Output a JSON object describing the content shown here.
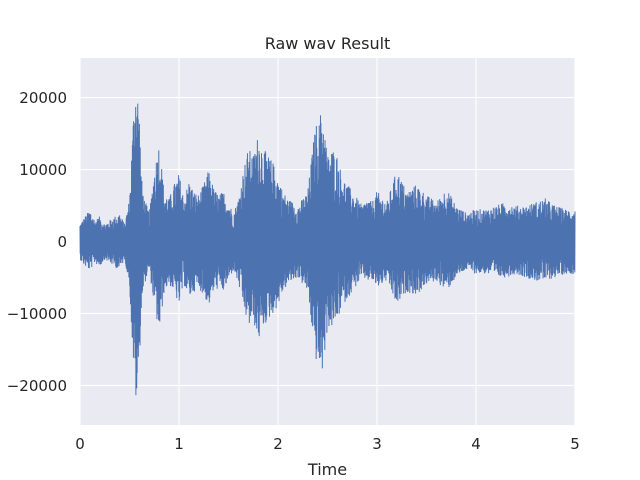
{
  "chart_data": {
    "type": "line",
    "title": "Raw wav Result",
    "xlabel": "Time",
    "ylabel": "",
    "xlim": [
      0,
      5
    ],
    "ylim": [
      -25500,
      25500
    ],
    "x_ticks": [
      0,
      1,
      2,
      3,
      4,
      5
    ],
    "x_tick_labels": [
      "0",
      "1",
      "2",
      "3",
      "4",
      "5"
    ],
    "y_ticks": [
      -20000,
      -10000,
      0,
      10000,
      20000
    ],
    "y_tick_labels": [
      "−20000",
      "−10000",
      "0",
      "10000",
      "20000"
    ],
    "grid": true,
    "colors": {
      "background": "#eaeaf2",
      "grid": "#ffffff",
      "line": "#4c72b0"
    },
    "series": [
      {
        "envelope_upper": {
          "x": [
            0,
            0.05,
            0.1,
            0.15,
            0.2,
            0.25,
            0.3,
            0.35,
            0.4,
            0.45,
            0.5,
            0.53,
            0.55,
            0.57,
            0.6,
            0.62,
            0.65,
            0.7,
            0.75,
            0.8,
            0.85,
            0.9,
            0.95,
            1.0,
            1.05,
            1.1,
            1.15,
            1.2,
            1.25,
            1.3,
            1.35,
            1.4,
            1.45,
            1.5,
            1.55,
            1.6,
            1.65,
            1.7,
            1.75,
            1.8,
            1.85,
            1.9,
            1.95,
            2.0,
            2.05,
            2.1,
            2.15,
            2.2,
            2.25,
            2.3,
            2.35,
            2.38,
            2.41,
            2.44,
            2.47,
            2.5,
            2.55,
            2.6,
            2.65,
            2.7,
            2.75,
            2.8,
            2.85,
            2.9,
            2.95,
            3.0,
            3.1,
            3.2,
            3.3,
            3.4,
            3.5,
            3.6,
            3.7,
            3.8,
            3.9,
            4.0,
            4.1,
            4.2,
            4.3,
            4.4,
            4.5,
            4.6,
            4.7,
            4.8,
            4.9,
            5.0
          ],
          "y": [
            2500,
            3500,
            4500,
            3000,
            3500,
            2500,
            3000,
            3500,
            4000,
            2500,
            6000,
            15000,
            21000,
            23000,
            18000,
            9000,
            6000,
            4000,
            10000,
            14000,
            7000,
            6000,
            8000,
            9500,
            6000,
            8500,
            7000,
            6500,
            8000,
            10000,
            7500,
            6500,
            7000,
            5500,
            4000,
            6000,
            10000,
            13000,
            12000,
            15000,
            13000,
            12000,
            11000,
            9000,
            7000,
            6000,
            5500,
            5000,
            6000,
            7000,
            13000,
            16500,
            16000,
            19000,
            16000,
            12000,
            13000,
            12000,
            9000,
            8000,
            7000,
            6000,
            5000,
            6000,
            5500,
            7000,
            5500,
            10000,
            7000,
            8000,
            6500,
            5500,
            7500,
            5000,
            4000,
            4500,
            4500,
            5000,
            5500,
            5000,
            5000,
            5500,
            6000,
            5000,
            4500,
            4500
          ]
        },
        "envelope_lower": {
          "x": [
            0,
            0.05,
            0.1,
            0.15,
            0.2,
            0.25,
            0.3,
            0.35,
            0.4,
            0.45,
            0.5,
            0.53,
            0.55,
            0.57,
            0.6,
            0.62,
            0.65,
            0.7,
            0.75,
            0.8,
            0.85,
            0.9,
            0.95,
            1.0,
            1.05,
            1.1,
            1.15,
            1.2,
            1.25,
            1.3,
            1.35,
            1.4,
            1.45,
            1.5,
            1.55,
            1.6,
            1.65,
            1.7,
            1.75,
            1.8,
            1.85,
            1.9,
            1.95,
            2.0,
            2.05,
            2.1,
            2.15,
            2.2,
            2.25,
            2.3,
            2.35,
            2.38,
            2.41,
            2.44,
            2.47,
            2.5,
            2.55,
            2.6,
            2.65,
            2.7,
            2.75,
            2.8,
            2.85,
            2.9,
            2.95,
            3.0,
            3.1,
            3.2,
            3.3,
            3.4,
            3.5,
            3.6,
            3.7,
            3.8,
            3.9,
            4.0,
            4.1,
            4.2,
            4.3,
            4.4,
            4.5,
            4.6,
            4.7,
            4.8,
            4.9,
            5.0
          ],
          "y": [
            -2500,
            -3500,
            -4000,
            -3000,
            -3500,
            -2500,
            -3000,
            -3500,
            -4000,
            -2500,
            -6000,
            -15000,
            -20000,
            -23000,
            -17000,
            -9000,
            -6000,
            -4000,
            -9000,
            -13000,
            -7000,
            -6000,
            -7000,
            -9000,
            -6000,
            -8000,
            -7000,
            -6500,
            -7500,
            -9000,
            -7000,
            -6500,
            -7000,
            -5500,
            -4000,
            -6000,
            -9000,
            -12000,
            -11000,
            -14000,
            -12000,
            -11000,
            -10000,
            -9000,
            -7000,
            -6000,
            -5500,
            -5000,
            -6000,
            -7000,
            -13000,
            -16500,
            -17000,
            -19000,
            -16000,
            -12000,
            -12000,
            -11000,
            -9000,
            -8000,
            -7000,
            -6000,
            -5000,
            -5500,
            -5500,
            -6500,
            -5500,
            -9000,
            -7000,
            -7500,
            -6000,
            -5500,
            -7000,
            -5000,
            -4000,
            -4500,
            -4500,
            -5000,
            -5000,
            -4500,
            -5000,
            -5500,
            -5500,
            -5000,
            -4500,
            -4500
          ]
        }
      }
    ]
  }
}
